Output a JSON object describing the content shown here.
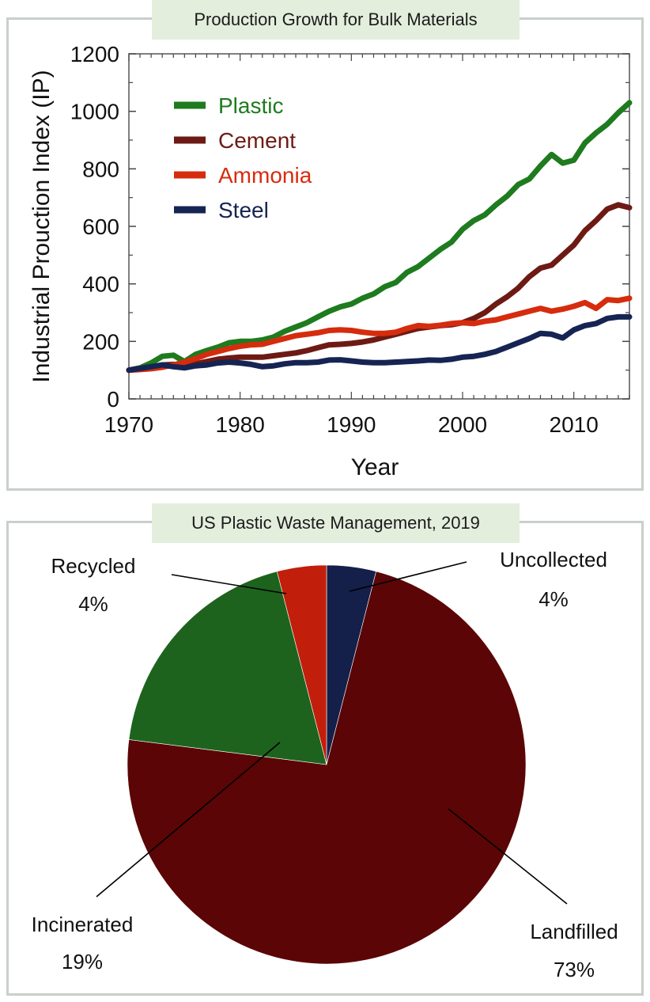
{
  "chart_data": [
    {
      "type": "line",
      "title": "Production Growth for Bulk Materials",
      "xlabel": "Year",
      "ylabel": "Industrial Prouction Index (IP)",
      "xlim": [
        1970,
        2015
      ],
      "ylim": [
        0,
        1200
      ],
      "xticks": [
        1970,
        1980,
        1990,
        2000,
        2010
      ],
      "yticks": [
        0,
        200,
        400,
        600,
        800,
        1000,
        1200
      ],
      "legend_position": "top-left",
      "series": [
        {
          "name": "Plastic",
          "color": "#1e7b1e",
          "x": [
            1970,
            1971,
            1972,
            1973,
            1974,
            1975,
            1976,
            1977,
            1978,
            1979,
            1980,
            1981,
            1982,
            1983,
            1984,
            1985,
            1986,
            1987,
            1988,
            1989,
            1990,
            1991,
            1992,
            1993,
            1994,
            1995,
            1996,
            1997,
            1998,
            1999,
            2000,
            2001,
            2002,
            2003,
            2004,
            2005,
            2006,
            2007,
            2008,
            2009,
            2010,
            2011,
            2012,
            2013,
            2014,
            2015
          ],
          "y": [
            100,
            108,
            125,
            148,
            152,
            130,
            155,
            168,
            180,
            195,
            200,
            200,
            205,
            215,
            235,
            250,
            265,
            285,
            305,
            320,
            330,
            350,
            365,
            390,
            405,
            440,
            460,
            490,
            520,
            545,
            590,
            620,
            640,
            675,
            705,
            745,
            765,
            810,
            850,
            820,
            830,
            890,
            925,
            955,
            995,
            1030
          ]
        },
        {
          "name": "Cement",
          "color": "#6e1a14",
          "x": [
            1970,
            1971,
            1972,
            1973,
            1974,
            1975,
            1976,
            1977,
            1978,
            1979,
            1980,
            1981,
            1982,
            1983,
            1984,
            1985,
            1986,
            1987,
            1988,
            1989,
            1990,
            1991,
            1992,
            1993,
            1994,
            1995,
            1996,
            1997,
            1998,
            1999,
            2000,
            2001,
            2002,
            2003,
            2004,
            2005,
            2006,
            2007,
            2008,
            2009,
            2010,
            2011,
            2012,
            2013,
            2014,
            2015
          ],
          "y": [
            100,
            105,
            110,
            118,
            120,
            112,
            122,
            130,
            138,
            142,
            145,
            145,
            145,
            150,
            155,
            160,
            168,
            178,
            188,
            190,
            193,
            198,
            205,
            215,
            225,
            235,
            245,
            250,
            255,
            258,
            265,
            280,
            300,
            330,
            355,
            385,
            425,
            455,
            465,
            500,
            535,
            585,
            620,
            660,
            675,
            665
          ]
        },
        {
          "name": "Ammonia",
          "color": "#d62c0e",
          "x": [
            1970,
            1971,
            1972,
            1973,
            1974,
            1975,
            1976,
            1977,
            1978,
            1979,
            1980,
            1981,
            1982,
            1983,
            1984,
            1985,
            1986,
            1987,
            1988,
            1989,
            1990,
            1991,
            1992,
            1993,
            1994,
            1995,
            1996,
            1997,
            1998,
            1999,
            2000,
            2001,
            2002,
            2003,
            2004,
            2005,
            2006,
            2007,
            2008,
            2009,
            2010,
            2011,
            2012,
            2013,
            2014,
            2015
          ],
          "y": [
            100,
            102,
            105,
            110,
            118,
            128,
            140,
            155,
            165,
            175,
            183,
            188,
            190,
            200,
            210,
            220,
            225,
            230,
            238,
            240,
            238,
            232,
            228,
            228,
            232,
            245,
            255,
            252,
            256,
            262,
            265,
            262,
            270,
            275,
            285,
            295,
            305,
            315,
            305,
            312,
            322,
            335,
            315,
            345,
            342,
            350
          ]
        },
        {
          "name": "Steel",
          "color": "#162453",
          "x": [
            1970,
            1971,
            1972,
            1973,
            1974,
            1975,
            1976,
            1977,
            1978,
            1979,
            1980,
            1981,
            1982,
            1983,
            1984,
            1985,
            1986,
            1987,
            1988,
            1989,
            1990,
            1991,
            1992,
            1993,
            1994,
            1995,
            1996,
            1997,
            1998,
            1999,
            2000,
            2001,
            2002,
            2003,
            2004,
            2005,
            2006,
            2007,
            2008,
            2009,
            2010,
            2011,
            2012,
            2013,
            2014,
            2015
          ],
          "y": [
            100,
            106,
            112,
            118,
            112,
            108,
            115,
            118,
            125,
            128,
            125,
            120,
            112,
            115,
            122,
            126,
            126,
            128,
            135,
            136,
            132,
            128,
            126,
            126,
            128,
            130,
            132,
            135,
            134,
            138,
            145,
            148,
            155,
            165,
            180,
            195,
            210,
            228,
            225,
            212,
            240,
            255,
            262,
            280,
            285,
            285
          ]
        }
      ]
    },
    {
      "type": "pie",
      "title": "US Plastic Waste Management, 2019",
      "slices": [
        {
          "label": "Uncollected",
          "percent_label": "4%",
          "value": 4,
          "color": "#141f4a"
        },
        {
          "label": "Landfilled",
          "percent_label": "73%",
          "value": 73,
          "color": "#5b0506"
        },
        {
          "label": "Incinerated",
          "percent_label": "19%",
          "value": 19,
          "color": "#1d631d"
        },
        {
          "label": "Recycled",
          "percent_label": "4%",
          "value": 4,
          "color": "#c21e0c"
        }
      ]
    }
  ]
}
